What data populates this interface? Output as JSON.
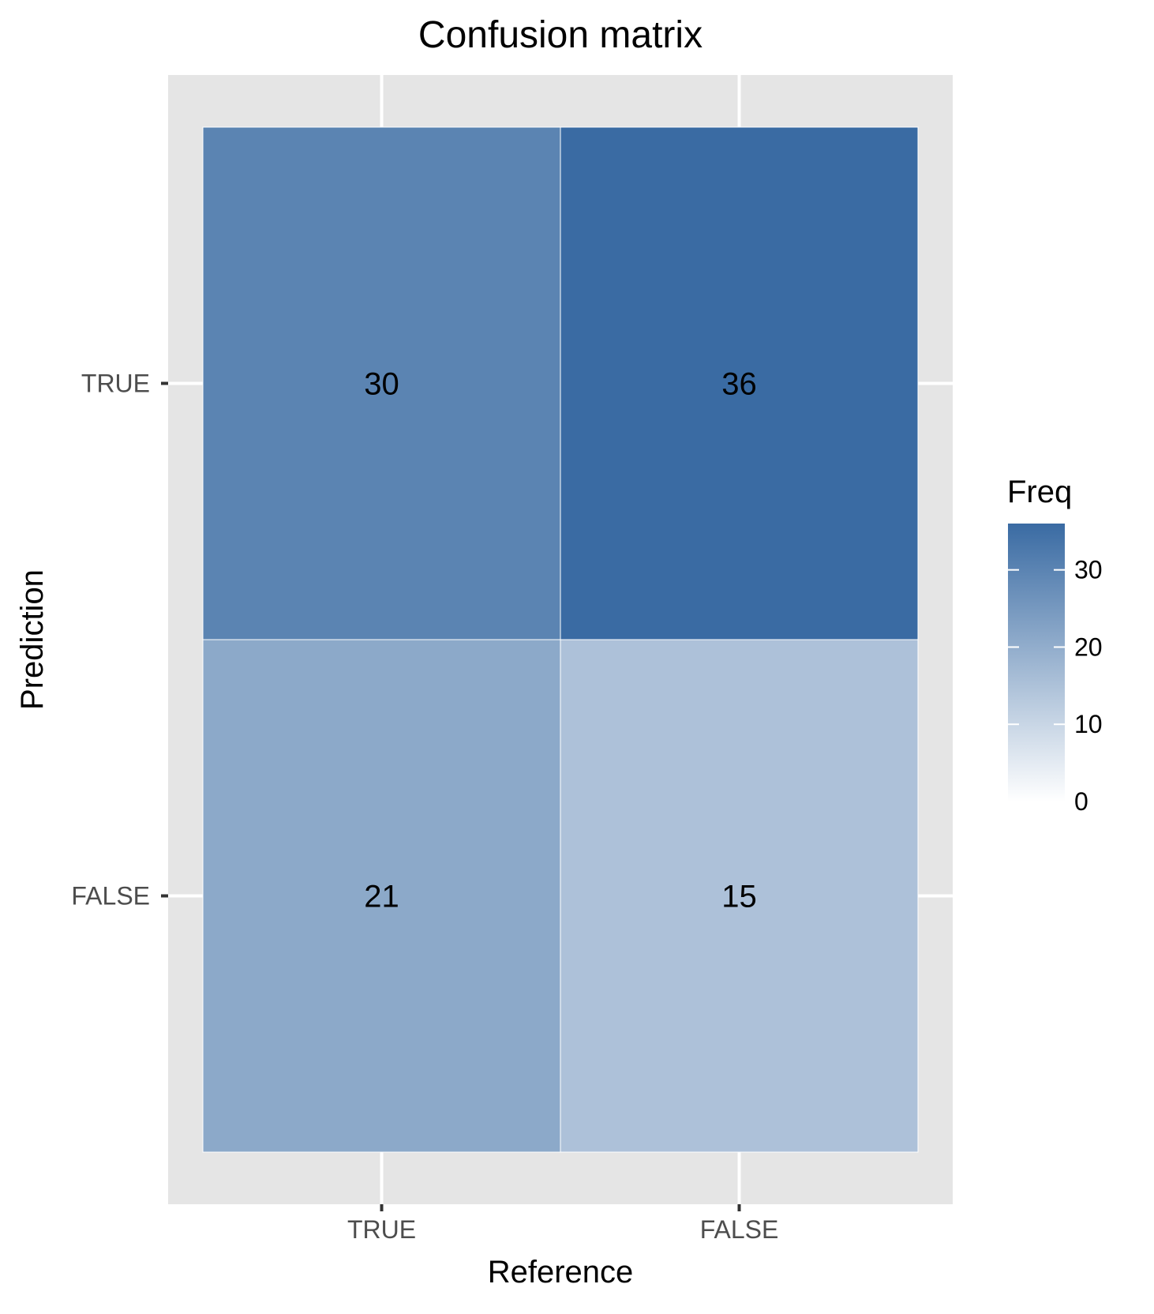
{
  "chart_data": {
    "type": "heatmap",
    "title": "Confusion matrix",
    "xlabel": "Reference",
    "ylabel": "Prediction",
    "x_categories": [
      "TRUE",
      "FALSE"
    ],
    "y_categories": [
      "TRUE",
      "FALSE"
    ],
    "cells": [
      {
        "x": "TRUE",
        "y": "TRUE",
        "value": 30
      },
      {
        "x": "FALSE",
        "y": "TRUE",
        "value": 36
      },
      {
        "x": "TRUE",
        "y": "FALSE",
        "value": 21
      },
      {
        "x": "FALSE",
        "y": "FALSE",
        "value": 15
      }
    ],
    "legend": {
      "title": "Freq",
      "position": "right",
      "ticks": [
        0,
        10,
        20,
        30
      ],
      "range": [
        0,
        36
      ],
      "low_color": "#ffffff",
      "high_color": "#3a6ba3"
    },
    "grid": true,
    "panel_background": "#e5e5e5"
  }
}
